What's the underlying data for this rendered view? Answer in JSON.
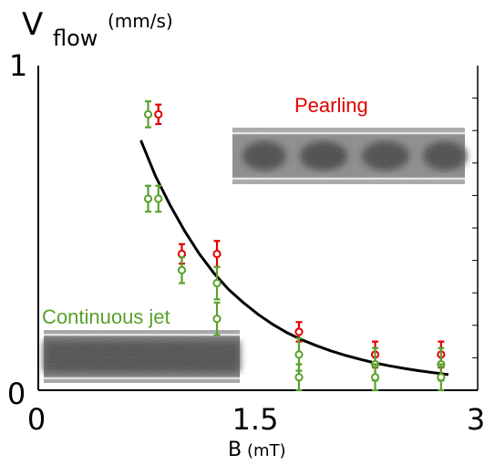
{
  "chart_data": {
    "type": "scatter",
    "ylabel": {
      "symbol": "V",
      "subscript": "flow",
      "unit": "(mm/s)"
    },
    "xlabel": {
      "symbol": "B",
      "unit": "(mT)"
    },
    "xlim": [
      0,
      3
    ],
    "ylim": [
      0,
      1
    ],
    "x_ticks": [
      0,
      1.5,
      3
    ],
    "x_tick_labels": [
      "0",
      "1.5",
      "3"
    ],
    "y_tick_labels": [
      "0",
      "1"
    ],
    "series": [
      {
        "color": "#e00000",
        "points": [
          {
            "x": 0.82,
            "y": 0.85,
            "err": 0.03
          },
          {
            "x": 0.98,
            "y": 0.42,
            "err": 0.03
          },
          {
            "x": 1.22,
            "y": 0.42,
            "err": 0.04
          },
          {
            "x": 1.78,
            "y": 0.18,
            "err": 0.03
          },
          {
            "x": 2.3,
            "y": 0.11,
            "err": 0.04
          },
          {
            "x": 2.75,
            "y": 0.11,
            "err": 0.04
          }
        ]
      },
      {
        "color": "#5aa02c",
        "points": [
          {
            "x": 0.75,
            "y": 0.85,
            "err": 0.04
          },
          {
            "x": 0.75,
            "y": 0.59,
            "err": 0.04
          },
          {
            "x": 0.82,
            "y": 0.59,
            "err": 0.04
          },
          {
            "x": 0.98,
            "y": 0.37,
            "err": 0.04
          },
          {
            "x": 1.22,
            "y": 0.33,
            "err": 0.05
          },
          {
            "x": 1.22,
            "y": 0.22,
            "err": 0.05
          },
          {
            "x": 1.78,
            "y": 0.11,
            "err": 0.05
          },
          {
            "x": 1.78,
            "y": 0.04,
            "err": 0.04
          },
          {
            "x": 2.3,
            "y": 0.08,
            "err": 0.05
          },
          {
            "x": 2.3,
            "y": 0.04,
            "err": 0.04
          },
          {
            "x": 2.75,
            "y": 0.08,
            "err": 0.05
          },
          {
            "x": 2.75,
            "y": 0.04,
            "err": 0.04
          }
        ]
      }
    ],
    "fit_curve": {
      "color": "#000000",
      "points": [
        [
          0.7,
          0.77
        ],
        [
          0.8,
          0.66
        ],
        [
          0.9,
          0.57
        ],
        [
          1.0,
          0.49
        ],
        [
          1.1,
          0.42
        ],
        [
          1.2,
          0.36
        ],
        [
          1.3,
          0.31
        ],
        [
          1.4,
          0.27
        ],
        [
          1.5,
          0.234
        ],
        [
          1.6,
          0.203
        ],
        [
          1.7,
          0.177
        ],
        [
          1.8,
          0.155
        ],
        [
          1.9,
          0.137
        ],
        [
          2.0,
          0.121
        ],
        [
          2.1,
          0.107
        ],
        [
          2.2,
          0.095
        ],
        [
          2.3,
          0.084
        ],
        [
          2.4,
          0.075
        ],
        [
          2.5,
          0.067
        ],
        [
          2.6,
          0.06
        ],
        [
          2.7,
          0.054
        ],
        [
          2.8,
          0.048
        ]
      ]
    },
    "annotations": [
      {
        "text": "Pearling",
        "color": "#e00000"
      },
      {
        "text": "Continuous jet",
        "color": "#5aa02c"
      }
    ],
    "insets": [
      {
        "name": "pearling-inset",
        "pattern": "pearling"
      },
      {
        "name": "continuous-jet-inset",
        "pattern": "continuous"
      }
    ]
  }
}
